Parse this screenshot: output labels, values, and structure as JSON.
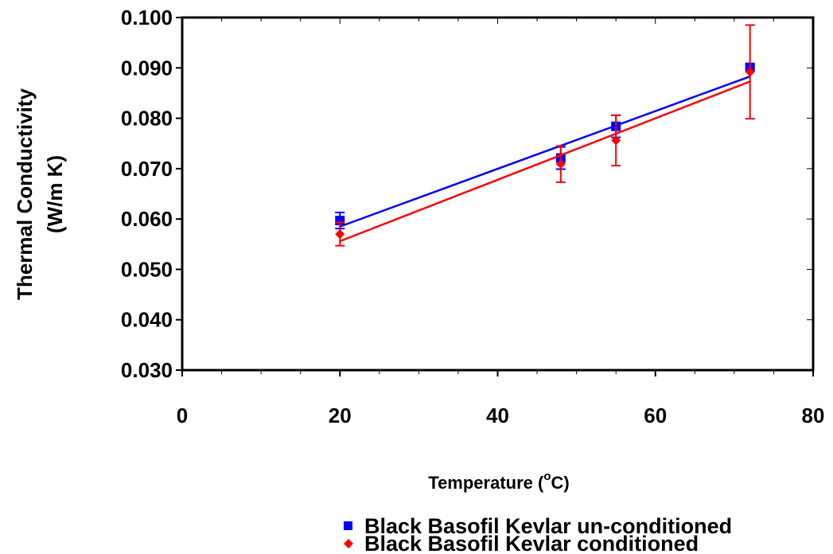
{
  "chart_data": {
    "type": "scatter",
    "xlabel": "Temperature (",
    "xlabel_superscript": "o",
    "xlabel_suffix": "C)",
    "ylabel_line1": "Thermal Conductivity",
    "ylabel_line2": "(W/m K)",
    "xlim": [
      0,
      80
    ],
    "ylim": [
      0.03,
      0.1
    ],
    "xticks": [
      0,
      20,
      40,
      60,
      80
    ],
    "xtick_labels": [
      "0",
      "20",
      "40",
      "60",
      "80"
    ],
    "yticks": [
      0.03,
      0.04,
      0.05,
      0.06,
      0.07,
      0.08,
      0.09,
      0.1
    ],
    "ytick_labels": [
      "0.030",
      "0.040",
      "0.050",
      "0.060",
      "0.070",
      "0.080",
      "0.090",
      "0.100"
    ],
    "grid": false,
    "legend_position": "bottom-right",
    "series": [
      {
        "name": "Black Basofil Kevlar un-conditioned",
        "color": "#0000ff",
        "marker": "square",
        "x": [
          20,
          48,
          55,
          72
        ],
        "y": [
          0.0597,
          0.0721,
          0.0784,
          0.0901
        ],
        "error": [
          0.0016,
          0.0022,
          0.0022,
          0.0005
        ],
        "trendline": {
          "x": [
            20,
            72
          ],
          "y": [
            0.0585,
            0.0883
          ]
        }
      },
      {
        "name": "Black Basofil Kevlar conditioned",
        "color": "#ff0000",
        "marker": "diamond",
        "x": [
          20,
          48,
          55,
          72
        ],
        "y": [
          0.057,
          0.0709,
          0.0756,
          0.0892
        ],
        "error": [
          0.0023,
          0.0036,
          0.005,
          0.0093
        ],
        "trendline": {
          "x": [
            20,
            72
          ],
          "y": [
            0.0556,
            0.0873
          ]
        }
      }
    ]
  }
}
